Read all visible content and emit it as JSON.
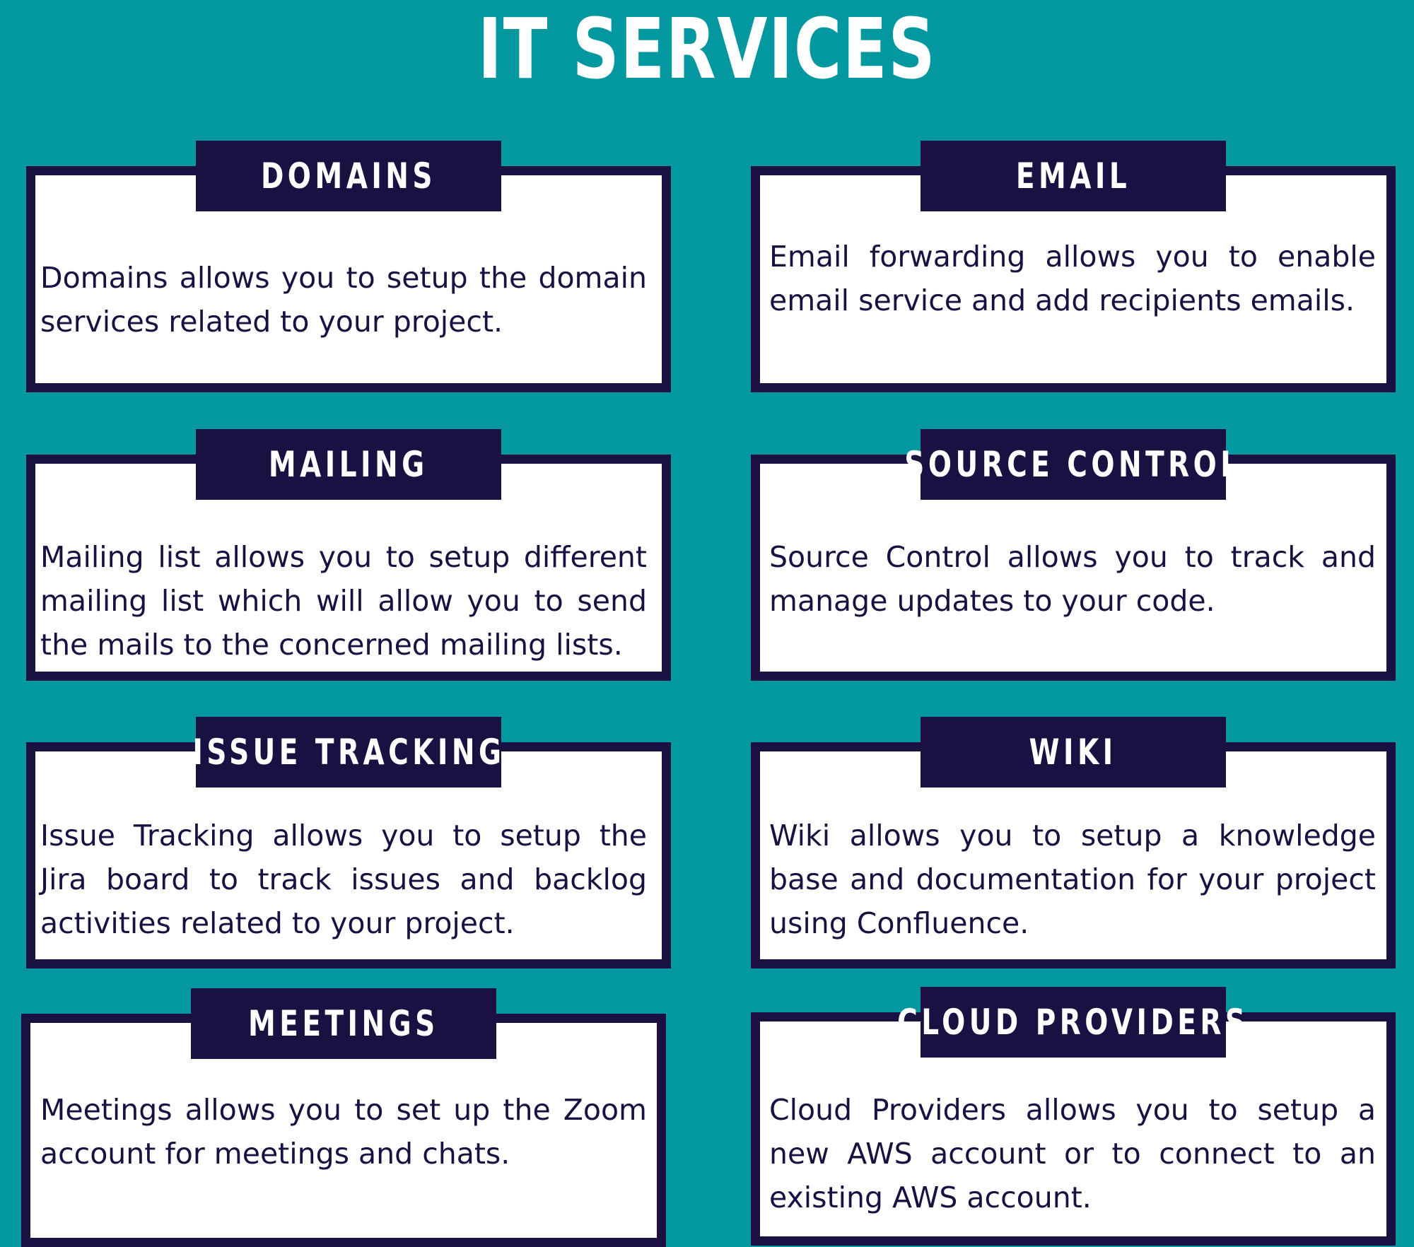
{
  "title": "IT SERVICES",
  "services": [
    {
      "label": "DOMAINS",
      "description": "Domains  allows you to setup the domain services related to your project."
    },
    {
      "label": "EMAIL",
      "description": "Email forwarding allows you to enable email service and add recipients emails."
    },
    {
      "label": "MAILING",
      "description": "Mailing list allows you to setup different mailing list which will allow you to send the mails to the concerned mailing lists."
    },
    {
      "label": "SOURCE CONTROL",
      "description": "Source Control allows you to track and manage updates to your code."
    },
    {
      "label": "ISSUE TRACKING",
      "description": "Issue Tracking allows you to setup the Jira board to track issues and backlog activities related to your project."
    },
    {
      "label": "WIKI",
      "description": "Wiki allows you to setup a knowledge base and documentation for your project using Confluence."
    },
    {
      "label": "MEETINGS",
      "description": "Meetings allows you to set up the Zoom account for meetings and chats."
    },
    {
      "label": "CLOUD PROVIDERS",
      "description": "Cloud Providers allows you to setup a new AWS account or to connect to an existing AWS account."
    }
  ]
}
